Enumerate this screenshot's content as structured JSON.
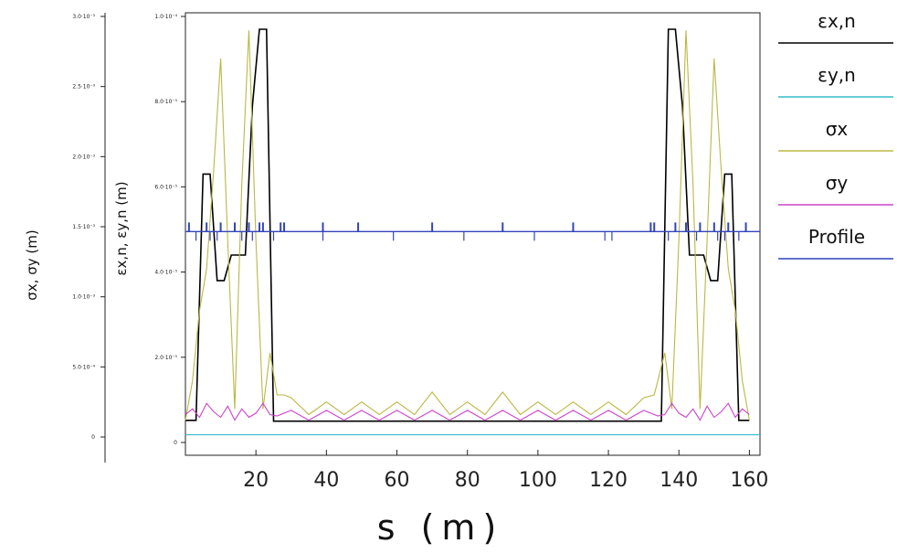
{
  "chart_data": {
    "type": "line",
    "xlabel": "s (m)",
    "x_ticks": [
      "20",
      "40",
      "60",
      "80",
      "100",
      "120",
      "140",
      "160"
    ],
    "x_tick_values": [
      20,
      40,
      60,
      80,
      100,
      120,
      140,
      160
    ],
    "xlim": [
      0,
      163
    ],
    "left_axis": {
      "label": "σx, σy (m)",
      "ylim": [
        0,
        0.003
      ],
      "ticks": [
        {
          "value": 0,
          "label": "0"
        },
        {
          "value": 0.0005,
          "label": "5.0·10⁻⁴"
        },
        {
          "value": 0.001,
          "label": "1.0·10⁻³"
        },
        {
          "value": 0.0015,
          "label": "1.5·10⁻³"
        },
        {
          "value": 0.002,
          "label": "2.0·10⁻³"
        },
        {
          "value": 0.0025,
          "label": "2.5·10⁻³"
        },
        {
          "value": 0.003,
          "label": "3.0·10⁻³"
        }
      ]
    },
    "right_axis": {
      "label": "εx,n, εy,n (m)",
      "ylim": [
        0,
        0.0001
      ],
      "ticks": [
        {
          "value": 0,
          "label": "0"
        },
        {
          "value": 2e-05,
          "label": "2.0·10⁻⁵"
        },
        {
          "value": 4e-05,
          "label": "4.0·10⁻⁵"
        },
        {
          "value": 6e-05,
          "label": "6.0·10⁻⁵"
        },
        {
          "value": 8e-05,
          "label": "8.0·10⁻⁵"
        },
        {
          "value": 0.0001,
          "label": "1.0·10⁻⁴"
        }
      ]
    },
    "series": [
      {
        "name": "εx,n",
        "axis": "right",
        "color": "#000000",
        "points": [
          [
            0,
            5.2e-06
          ],
          [
            3,
            5.2e-06
          ],
          [
            5,
            6.3e-05
          ],
          [
            7,
            6.3e-05
          ],
          [
            9,
            3.8e-05
          ],
          [
            11,
            3.8e-05
          ],
          [
            13,
            4.4e-05
          ],
          [
            17,
            4.4e-05
          ],
          [
            19,
            7.9e-05
          ],
          [
            21,
            9.7e-05
          ],
          [
            23,
            9.7e-05
          ],
          [
            25,
            5e-06
          ],
          [
            135,
            5e-06
          ],
          [
            137,
            9.7e-05
          ],
          [
            139,
            9.7e-05
          ],
          [
            141,
            7.9e-05
          ],
          [
            143,
            4.4e-05
          ],
          [
            147,
            4.4e-05
          ],
          [
            149,
            3.8e-05
          ],
          [
            151,
            3.8e-05
          ],
          [
            153,
            6.3e-05
          ],
          [
            155,
            6.3e-05
          ],
          [
            157,
            5.2e-06
          ],
          [
            160,
            5.2e-06
          ]
        ]
      },
      {
        "name": "εy,n",
        "axis": "right",
        "color": "#33bbcc",
        "points": [
          [
            0,
            1.8e-06
          ],
          [
            163,
            1.8e-06
          ]
        ]
      },
      {
        "name": "σx",
        "axis": "left",
        "color": "#bbb844",
        "points": [
          [
            0,
            0.00012
          ],
          [
            2,
            0.0004
          ],
          [
            4,
            0.0009
          ],
          [
            6,
            0.0012
          ],
          [
            8,
            0.0019
          ],
          [
            10,
            0.0027
          ],
          [
            12,
            0.0014
          ],
          [
            14,
            0.0002
          ],
          [
            16,
            0.0018
          ],
          [
            18,
            0.0029
          ],
          [
            20,
            0.0014
          ],
          [
            22,
            0.0002
          ],
          [
            24,
            0.0006
          ],
          [
            26,
            0.0003
          ],
          [
            28,
            0.0003
          ],
          [
            30,
            0.00028
          ],
          [
            35,
            0.00016
          ],
          [
            40,
            0.00025
          ],
          [
            45,
            0.00016
          ],
          [
            50,
            0.00025
          ],
          [
            55,
            0.00016
          ],
          [
            60,
            0.00025
          ],
          [
            65,
            0.00016
          ],
          [
            70,
            0.00032
          ],
          [
            75,
            0.00016
          ],
          [
            80,
            0.00025
          ],
          [
            85,
            0.00016
          ],
          [
            90,
            0.00032
          ],
          [
            95,
            0.00016
          ],
          [
            100,
            0.00025
          ],
          [
            105,
            0.00016
          ],
          [
            110,
            0.00025
          ],
          [
            115,
            0.00016
          ],
          [
            120,
            0.00025
          ],
          [
            125,
            0.00016
          ],
          [
            130,
            0.00028
          ],
          [
            133,
            0.0003
          ],
          [
            136,
            0.0006
          ],
          [
            138,
            0.0002
          ],
          [
            140,
            0.0014
          ],
          [
            142,
            0.0029
          ],
          [
            144,
            0.0018
          ],
          [
            146,
            0.0002
          ],
          [
            148,
            0.0014
          ],
          [
            150,
            0.0027
          ],
          [
            152,
            0.0019
          ],
          [
            154,
            0.0012
          ],
          [
            156,
            0.0009
          ],
          [
            158,
            0.0004
          ],
          [
            160,
            0.00012
          ]
        ]
      },
      {
        "name": "σy",
        "axis": "left",
        "color": "#cc44cc",
        "points": [
          [
            0,
            0.00016
          ],
          [
            2,
            0.0002
          ],
          [
            4,
            0.00014
          ],
          [
            6,
            0.00024
          ],
          [
            8,
            0.00018
          ],
          [
            10,
            0.00014
          ],
          [
            12,
            0.00022
          ],
          [
            14,
            0.00012
          ],
          [
            16,
            0.0002
          ],
          [
            18,
            0.00014
          ],
          [
            20,
            0.00017
          ],
          [
            22,
            0.00024
          ],
          [
            24,
            0.00016
          ],
          [
            26,
            0.00015
          ],
          [
            30,
            0.00019
          ],
          [
            35,
            0.00012
          ],
          [
            40,
            0.00019
          ],
          [
            45,
            0.00012
          ],
          [
            50,
            0.00019
          ],
          [
            55,
            0.00012
          ],
          [
            60,
            0.00019
          ],
          [
            65,
            0.00012
          ],
          [
            70,
            0.00019
          ],
          [
            75,
            0.00012
          ],
          [
            80,
            0.00019
          ],
          [
            85,
            0.00012
          ],
          [
            90,
            0.00019
          ],
          [
            95,
            0.00012
          ],
          [
            100,
            0.00019
          ],
          [
            105,
            0.00012
          ],
          [
            110,
            0.00019
          ],
          [
            115,
            0.00012
          ],
          [
            120,
            0.00019
          ],
          [
            125,
            0.00012
          ],
          [
            130,
            0.00019
          ],
          [
            134,
            0.00015
          ],
          [
            136,
            0.00016
          ],
          [
            138,
            0.00024
          ],
          [
            140,
            0.00017
          ],
          [
            142,
            0.00014
          ],
          [
            144,
            0.0002
          ],
          [
            146,
            0.00012
          ],
          [
            148,
            0.00022
          ],
          [
            150,
            0.00014
          ],
          [
            152,
            0.00018
          ],
          [
            154,
            0.00024
          ],
          [
            156,
            0.00014
          ],
          [
            158,
            0.0002
          ],
          [
            160,
            0.00016
          ]
        ]
      }
    ],
    "profile": {
      "name": "Profile",
      "color": "#3344bb",
      "baseline": 4.95e-05,
      "up_markers": [
        1,
        6,
        10,
        14,
        18,
        21,
        22,
        27,
        28,
        39,
        49,
        70,
        90,
        110,
        132,
        133,
        139,
        142,
        146,
        150,
        154,
        159
      ],
      "down_markers": [
        3,
        7,
        9,
        16,
        19,
        25,
        39,
        59,
        79,
        99,
        119,
        121,
        137,
        145,
        151,
        153,
        157
      ]
    },
    "legend": {
      "placement": "right",
      "entries": [
        {
          "label": "εx,n",
          "color": "#000000"
        },
        {
          "label": "εy,n",
          "color": "#33bbcc"
        },
        {
          "label": "σx",
          "color": "#bbb844"
        },
        {
          "label": "σy",
          "color": "#cc44cc"
        },
        {
          "label": "Profile",
          "color": "#3344bb"
        }
      ]
    }
  }
}
